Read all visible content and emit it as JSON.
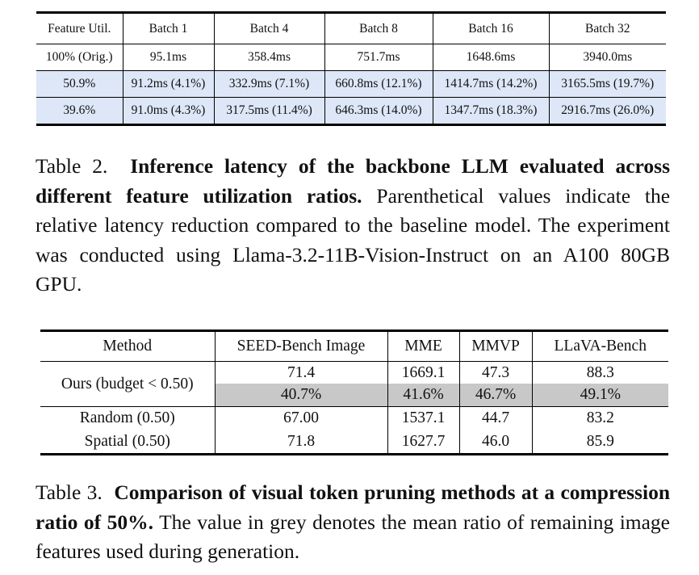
{
  "table2": {
    "headers": [
      "Feature Util.",
      "Batch 1",
      "Batch 4",
      "Batch 8",
      "Batch 16",
      "Batch 32"
    ],
    "rows": [
      [
        "100% (Orig.)",
        "95.1ms",
        "358.4ms",
        "751.7ms",
        "1648.6ms",
        "3940.0ms"
      ],
      [
        "50.9%",
        "91.2ms (4.1%)",
        "332.9ms (7.1%)",
        "660.8ms (12.1%)",
        "1414.7ms (14.2%)",
        "3165.5ms (19.7%)"
      ],
      [
        "39.6%",
        "91.0ms (4.3%)",
        "317.5ms (11.4%)",
        "646.3ms (14.0%)",
        "1347.7ms (18.3%)",
        "2916.7ms (26.0%)"
      ]
    ],
    "highlight_color": "#dde7f7"
  },
  "caption2": {
    "label": "Table 2.",
    "bold": "Inference latency of the backbone LLM evaluated across different feature utilization ratios.",
    "text": "Parenthetical values indicate the relative latency reduction compared to the baseline model. The experiment was conducted using Llama-3.2-11B-Vision-Instruct on an A100 80GB GPU."
  },
  "table3": {
    "headers": [
      "Method",
      "SEED-Bench Image",
      "MME",
      "MMVP",
      "LLaVA-Bench"
    ],
    "ours": {
      "label": "Ours (budget < 0.50)",
      "scores": [
        "71.4",
        "1669.1",
        "47.3",
        "88.3"
      ],
      "ratios": [
        "40.7%",
        "41.6%",
        "46.7%",
        "49.1%"
      ]
    },
    "rows": [
      [
        "Random (0.50)",
        "67.00",
        "1537.1",
        "44.7",
        "83.2"
      ],
      [
        "Spatial (0.50)",
        "71.8",
        "1627.7",
        "46.0",
        "85.9"
      ]
    ],
    "grey_color": "#c8c8c8"
  },
  "caption3": {
    "label": "Table 3.",
    "bold": "Comparison of visual token pruning methods at a compression ratio of 50%.",
    "text": "The value in grey denotes the mean ratio of remaining image features used during generation."
  }
}
